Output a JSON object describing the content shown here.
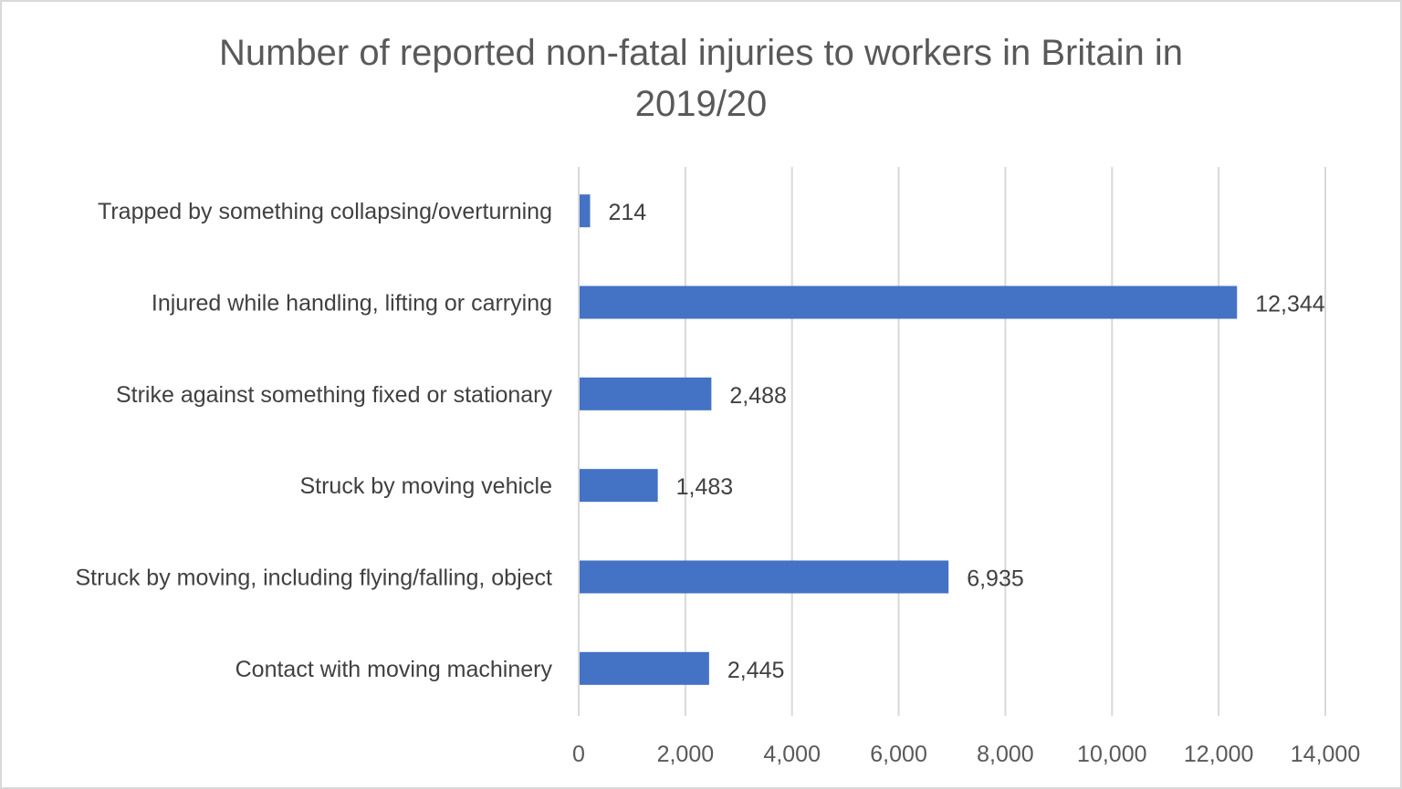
{
  "chart_data": {
    "type": "bar",
    "orientation": "horizontal",
    "title": "Number of reported non-fatal injuries to workers in Britain in 2019/20",
    "title_lines": [
      "Number of reported non-fatal injuries to workers in Britain in",
      "2019/20"
    ],
    "categories": [
      "Trapped by something collapsing/overturning",
      "Injured while handling, lifting or carrying",
      "Strike against something fixed or stationary",
      "Struck by moving vehicle",
      "Struck by moving, including flying/falling, object",
      "Contact with moving machinery"
    ],
    "values": [
      214,
      12344,
      2488,
      1483,
      6935,
      2445
    ],
    "data_labels": [
      "214",
      "12,344",
      "2,488",
      "1,483",
      "6,935",
      "2,445"
    ],
    "xlim": [
      0,
      14000
    ],
    "x_ticks": [
      0,
      2000,
      4000,
      6000,
      8000,
      10000,
      12000,
      14000
    ],
    "x_tick_labels": [
      "0",
      "2,000",
      "4,000",
      "6,000",
      "8,000",
      "10,000",
      "12,000",
      "14,000"
    ],
    "xlabel": "",
    "ylabel": "",
    "grid": "vertical",
    "legend": "none",
    "colors": {
      "bar": "#4472C4",
      "grid": "#D9D9D9"
    }
  }
}
